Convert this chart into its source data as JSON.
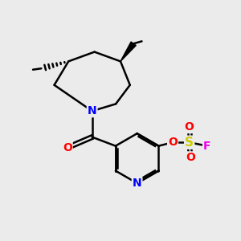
{
  "bg_color": "#ebebeb",
  "atom_colors": {
    "N": "#0000ff",
    "O": "#ff0000",
    "S": "#cccc00",
    "F": "#ee00ee",
    "C": "#000000"
  },
  "bond_color": "#000000",
  "bond_width": 1.8,
  "figsize": [
    3.0,
    3.0
  ],
  "dpi": 100,
  "xlim": [
    0,
    10
  ],
  "ylim": [
    0,
    10
  ]
}
